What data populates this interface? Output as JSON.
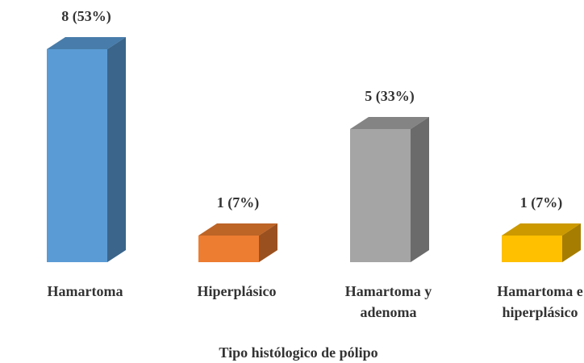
{
  "chart_data": {
    "type": "bar3d",
    "x_label": "Tipo histólogico de pólipo",
    "categories": [
      "Hamartoma",
      "Hiperplásico",
      "Hamartoma y adenoma",
      "Hamartoma e hiperplásico"
    ],
    "values": [
      8,
      1,
      5,
      1
    ],
    "value_labels": [
      "8 (53%)",
      "1 (7%)",
      "5 (33%)",
      "1 (7%)"
    ],
    "colors": [
      "#5b9bd5",
      "#ed7d31",
      "#a5a5a5",
      "#ffc000"
    ]
  }
}
